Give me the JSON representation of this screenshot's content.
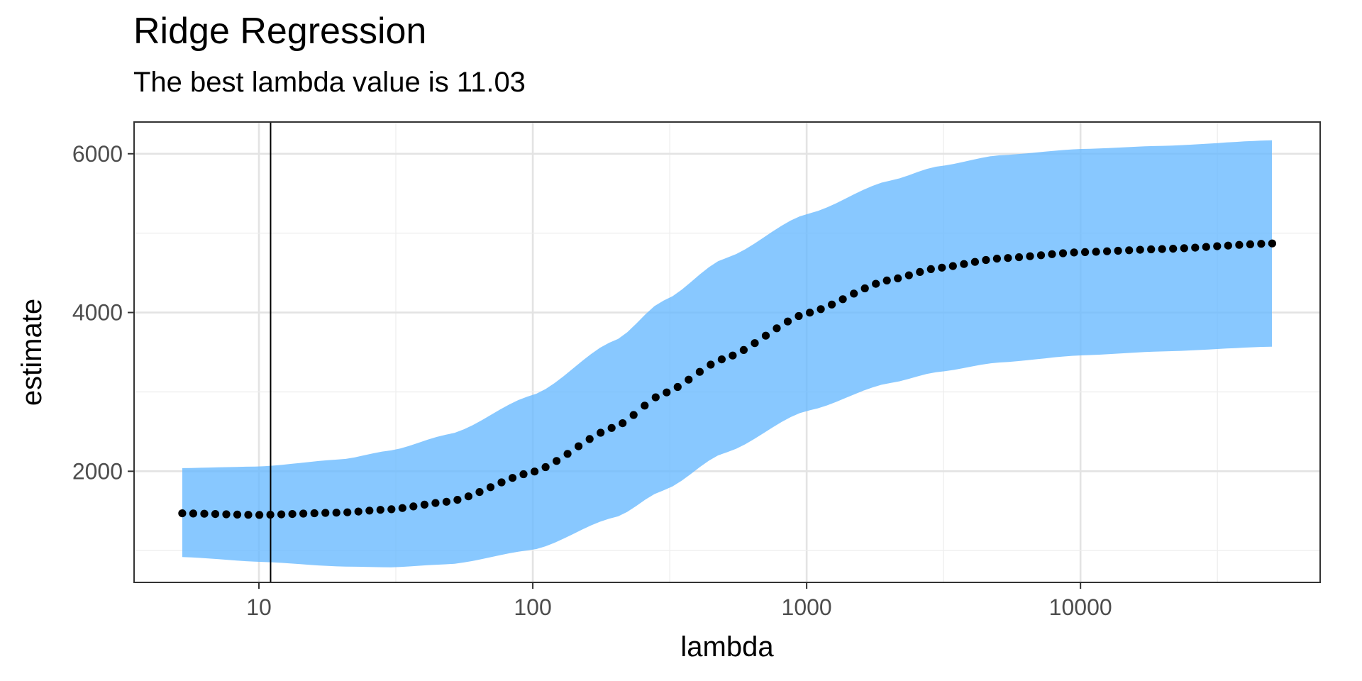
{
  "chart_data": {
    "type": "line",
    "title": "Ridge Regression",
    "subtitle": "The best lambda value is 11.03",
    "xlabel": "lambda",
    "ylabel": "estimate",
    "x_scale": "log10",
    "xlim": [
      3.5,
      75000
    ],
    "ylim": [
      600,
      6400
    ],
    "x_ticks": [
      10,
      100,
      1000,
      10000
    ],
    "x_tick_labels": [
      "10",
      "100",
      "1000",
      "10000"
    ],
    "y_ticks": [
      2000,
      4000,
      6000
    ],
    "y_tick_labels": [
      "2000",
      "4000",
      "6000"
    ],
    "grid": true,
    "best_lambda": 11.03,
    "series": [
      {
        "kind": "points",
        "color": "#000000",
        "x_log10_start": 0.72,
        "x_log10_end": 4.7,
        "point_count": 100,
        "x": [
          5.25,
          10,
          20,
          30,
          50,
          100,
          200,
          300,
          500,
          1000,
          2000,
          3000,
          5000,
          10000,
          20000,
          50000
        ],
        "y": [
          1470,
          1450,
          1480,
          1520,
          1620,
          1990,
          2560,
          2980,
          3420,
          3990,
          4410,
          4560,
          4680,
          4760,
          4800,
          4870
        ]
      },
      {
        "kind": "ribbon",
        "color": "#66b8ff",
        "x": [
          5.25,
          10,
          20,
          30,
          50,
          100,
          200,
          300,
          500,
          1000,
          2000,
          3000,
          5000,
          10000,
          20000,
          50000
        ],
        "lower": [
          920,
          860,
          800,
          790,
          830,
          1010,
          1420,
          1760,
          2230,
          2760,
          3110,
          3250,
          3370,
          3460,
          3510,
          3570
        ],
        "upper": [
          2040,
          2060,
          2150,
          2260,
          2470,
          2960,
          3650,
          4150,
          4680,
          5240,
          5660,
          5840,
          5980,
          6060,
          6100,
          6170
        ]
      }
    ]
  }
}
